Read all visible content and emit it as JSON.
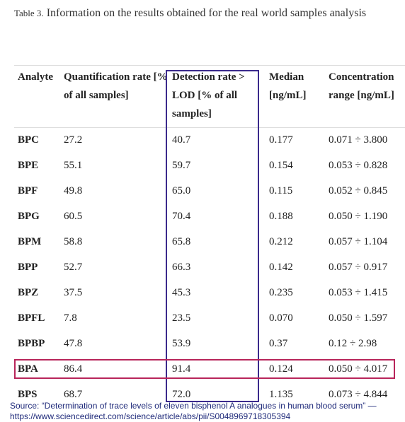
{
  "caption": {
    "label": "Table 3.",
    "text": "Information on the results obtained for the real world samples analysis"
  },
  "table": {
    "header": [
      "Analyte",
      "Quantification rate [% of all samples]",
      "Detection rate > LOD [% of all samples]",
      "Median [ng/mL]",
      "Concentration range [ng/mL]"
    ],
    "rows": [
      [
        "BPC",
        "27.2",
        "40.7",
        "0.177",
        "0.071 ÷ 3.800"
      ],
      [
        "BPE",
        "55.1",
        "59.7",
        "0.154",
        "0.053 ÷ 0.828"
      ],
      [
        "BPF",
        "49.8",
        "65.0",
        "0.115",
        "0.052 ÷ 0.845"
      ],
      [
        "BPG",
        "60.5",
        "70.4",
        "0.188",
        "0.050 ÷ 1.190"
      ],
      [
        "BPM",
        "58.8",
        "65.8",
        "0.212",
        "0.057 ÷ 1.104"
      ],
      [
        "BPP",
        "52.7",
        "66.3",
        "0.142",
        "0.057 ÷ 0.917"
      ],
      [
        "BPZ",
        "37.5",
        "45.3",
        "0.235",
        "0.053 ÷ 1.415"
      ],
      [
        "BPFL",
        "7.8",
        "23.5",
        "0.070",
        "0.050 ÷ 1.597"
      ],
      [
        "BPBP",
        "47.8",
        "53.9",
        "0.37",
        "0.12 ÷ 2.98"
      ],
      [
        "BPA",
        "86.4",
        "91.4",
        "0.124",
        "0.050 ÷ 4.017"
      ],
      [
        "BPS",
        "68.7",
        "72.0",
        "1.135",
        "0.073 ÷ 4.844"
      ]
    ]
  },
  "source": "Source: “Determination of trace levels of eleven bisphenol A analogues in human blood serum” — https://www.sciencedirect.com/science/article/abs/pii/S0048969718305394"
}
